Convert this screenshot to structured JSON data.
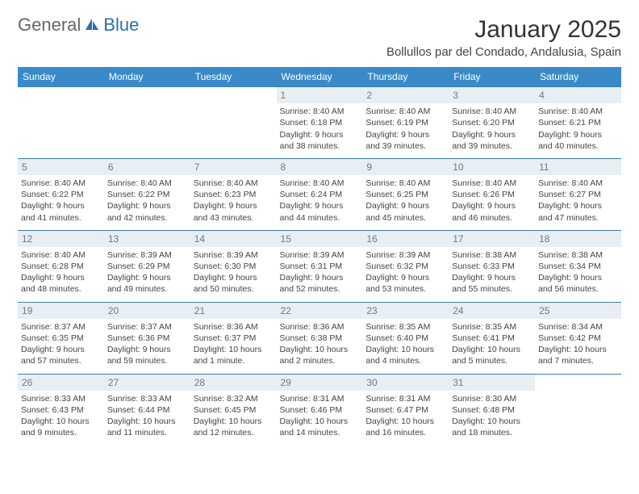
{
  "brand": {
    "part1": "General",
    "part2": "Blue"
  },
  "title": "January 2025",
  "location": "Bollullos par del Condado, Andalusia, Spain",
  "colors": {
    "header_bg": "#3a8ac9",
    "header_text": "#ffffff",
    "daynum_bg": "#e9eef2",
    "daynum_text": "#6a7a88",
    "row_border": "#3a7fb5",
    "brand_accent": "#2a6fb0"
  },
  "weekdays": [
    "Sunday",
    "Monday",
    "Tuesday",
    "Wednesday",
    "Thursday",
    "Friday",
    "Saturday"
  ],
  "start_weekday_index": 3,
  "days": [
    {
      "n": 1,
      "sunrise": "8:40 AM",
      "sunset": "6:18 PM",
      "daylight": "9 hours and 38 minutes."
    },
    {
      "n": 2,
      "sunrise": "8:40 AM",
      "sunset": "6:19 PM",
      "daylight": "9 hours and 39 minutes."
    },
    {
      "n": 3,
      "sunrise": "8:40 AM",
      "sunset": "6:20 PM",
      "daylight": "9 hours and 39 minutes."
    },
    {
      "n": 4,
      "sunrise": "8:40 AM",
      "sunset": "6:21 PM",
      "daylight": "9 hours and 40 minutes."
    },
    {
      "n": 5,
      "sunrise": "8:40 AM",
      "sunset": "6:22 PM",
      "daylight": "9 hours and 41 minutes."
    },
    {
      "n": 6,
      "sunrise": "8:40 AM",
      "sunset": "6:22 PM",
      "daylight": "9 hours and 42 minutes."
    },
    {
      "n": 7,
      "sunrise": "8:40 AM",
      "sunset": "6:23 PM",
      "daylight": "9 hours and 43 minutes."
    },
    {
      "n": 8,
      "sunrise": "8:40 AM",
      "sunset": "6:24 PM",
      "daylight": "9 hours and 44 minutes."
    },
    {
      "n": 9,
      "sunrise": "8:40 AM",
      "sunset": "6:25 PM",
      "daylight": "9 hours and 45 minutes."
    },
    {
      "n": 10,
      "sunrise": "8:40 AM",
      "sunset": "6:26 PM",
      "daylight": "9 hours and 46 minutes."
    },
    {
      "n": 11,
      "sunrise": "8:40 AM",
      "sunset": "6:27 PM",
      "daylight": "9 hours and 47 minutes."
    },
    {
      "n": 12,
      "sunrise": "8:40 AM",
      "sunset": "6:28 PM",
      "daylight": "9 hours and 48 minutes."
    },
    {
      "n": 13,
      "sunrise": "8:39 AM",
      "sunset": "6:29 PM",
      "daylight": "9 hours and 49 minutes."
    },
    {
      "n": 14,
      "sunrise": "8:39 AM",
      "sunset": "6:30 PM",
      "daylight": "9 hours and 50 minutes."
    },
    {
      "n": 15,
      "sunrise": "8:39 AM",
      "sunset": "6:31 PM",
      "daylight": "9 hours and 52 minutes."
    },
    {
      "n": 16,
      "sunrise": "8:39 AM",
      "sunset": "6:32 PM",
      "daylight": "9 hours and 53 minutes."
    },
    {
      "n": 17,
      "sunrise": "8:38 AM",
      "sunset": "6:33 PM",
      "daylight": "9 hours and 55 minutes."
    },
    {
      "n": 18,
      "sunrise": "8:38 AM",
      "sunset": "6:34 PM",
      "daylight": "9 hours and 56 minutes."
    },
    {
      "n": 19,
      "sunrise": "8:37 AM",
      "sunset": "6:35 PM",
      "daylight": "9 hours and 57 minutes."
    },
    {
      "n": 20,
      "sunrise": "8:37 AM",
      "sunset": "6:36 PM",
      "daylight": "9 hours and 59 minutes."
    },
    {
      "n": 21,
      "sunrise": "8:36 AM",
      "sunset": "6:37 PM",
      "daylight": "10 hours and 1 minute."
    },
    {
      "n": 22,
      "sunrise": "8:36 AM",
      "sunset": "6:38 PM",
      "daylight": "10 hours and 2 minutes."
    },
    {
      "n": 23,
      "sunrise": "8:35 AM",
      "sunset": "6:40 PM",
      "daylight": "10 hours and 4 minutes."
    },
    {
      "n": 24,
      "sunrise": "8:35 AM",
      "sunset": "6:41 PM",
      "daylight": "10 hours and 5 minutes."
    },
    {
      "n": 25,
      "sunrise": "8:34 AM",
      "sunset": "6:42 PM",
      "daylight": "10 hours and 7 minutes."
    },
    {
      "n": 26,
      "sunrise": "8:33 AM",
      "sunset": "6:43 PM",
      "daylight": "10 hours and 9 minutes."
    },
    {
      "n": 27,
      "sunrise": "8:33 AM",
      "sunset": "6:44 PM",
      "daylight": "10 hours and 11 minutes."
    },
    {
      "n": 28,
      "sunrise": "8:32 AM",
      "sunset": "6:45 PM",
      "daylight": "10 hours and 12 minutes."
    },
    {
      "n": 29,
      "sunrise": "8:31 AM",
      "sunset": "6:46 PM",
      "daylight": "10 hours and 14 minutes."
    },
    {
      "n": 30,
      "sunrise": "8:31 AM",
      "sunset": "6:47 PM",
      "daylight": "10 hours and 16 minutes."
    },
    {
      "n": 31,
      "sunrise": "8:30 AM",
      "sunset": "6:48 PM",
      "daylight": "10 hours and 18 minutes."
    }
  ],
  "labels": {
    "sunrise": "Sunrise:",
    "sunset": "Sunset:",
    "daylight": "Daylight:"
  }
}
